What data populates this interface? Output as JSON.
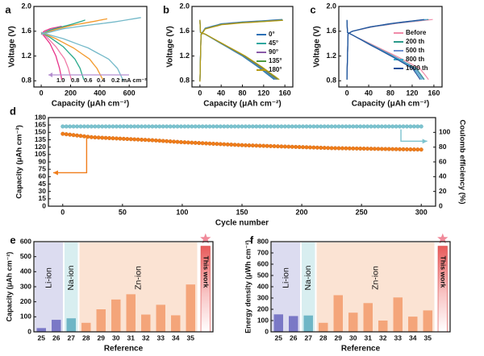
{
  "panel_labels": [
    "a",
    "b",
    "c",
    "d",
    "e",
    "f"
  ],
  "chart_data": [
    {
      "panel": "a",
      "type": "line",
      "xlabel": "Capacity (μAh cm⁻²)",
      "ylabel": "Voltage (V)",
      "xlim": [
        -50,
        720
      ],
      "ylim": [
        0.7,
        2.0
      ],
      "xticks": [
        0,
        200,
        400,
        600
      ],
      "yticks": [
        0.8,
        1.2,
        1.6,
        2.0
      ],
      "rate_labels": [
        "1.0",
        "0.8",
        "0.6",
        "0.4",
        "0.2 mA cm⁻²"
      ],
      "series": [
        {
          "label": "1.0",
          "color": "#e8338a",
          "charge": [
            [
              0,
              1.55
            ],
            [
              20,
              1.6
            ],
            [
              60,
              1.64
            ],
            [
              100,
              1.66
            ],
            [
              140,
              1.68
            ]
          ],
          "discharge": [
            [
              0,
              1.58
            ],
            [
              20,
              1.52
            ],
            [
              60,
              1.4
            ],
            [
              100,
              1.2
            ],
            [
              125,
              1.0
            ],
            [
              140,
              0.82
            ]
          ]
        },
        {
          "label": "0.8",
          "color": "#f07aa8",
          "charge": [
            [
              0,
              1.55
            ],
            [
              40,
              1.6
            ],
            [
              100,
              1.64
            ],
            [
              160,
              1.67
            ],
            [
              200,
              1.7
            ]
          ],
          "discharge": [
            [
              0,
              1.58
            ],
            [
              40,
              1.5
            ],
            [
              100,
              1.35
            ],
            [
              160,
              1.15
            ],
            [
              185,
              1.0
            ],
            [
              205,
              0.82
            ]
          ]
        },
        {
          "label": "0.6",
          "color": "#2aa98c",
          "charge": [
            [
              0,
              1.55
            ],
            [
              60,
              1.62
            ],
            [
              140,
              1.67
            ],
            [
              220,
              1.72
            ],
            [
              300,
              1.78
            ]
          ],
          "discharge": [
            [
              0,
              1.58
            ],
            [
              60,
              1.5
            ],
            [
              150,
              1.35
            ],
            [
              230,
              1.15
            ],
            [
              265,
              1.0
            ],
            [
              290,
              0.82
            ]
          ]
        },
        {
          "label": "0.4",
          "color": "#f39a2c",
          "charge": [
            [
              0,
              1.55
            ],
            [
              100,
              1.63
            ],
            [
              220,
              1.7
            ],
            [
              340,
              1.75
            ],
            [
              450,
              1.8
            ]
          ],
          "discharge": [
            [
              0,
              1.58
            ],
            [
              100,
              1.48
            ],
            [
              220,
              1.33
            ],
            [
              330,
              1.15
            ],
            [
              380,
              1.0
            ],
            [
              420,
              0.82
            ]
          ]
        },
        {
          "label": "0.2 mA cm⁻²",
          "color": "#74b9c9",
          "charge": [
            [
              0,
              1.55
            ],
            [
              150,
              1.64
            ],
            [
              330,
              1.7
            ],
            [
              500,
              1.75
            ],
            [
              680,
              1.82
            ]
          ],
          "discharge": [
            [
              0,
              1.58
            ],
            [
              150,
              1.48
            ],
            [
              320,
              1.33
            ],
            [
              460,
              1.15
            ],
            [
              520,
              1.0
            ],
            [
              560,
              0.8
            ]
          ]
        }
      ]
    },
    {
      "panel": "b",
      "type": "line",
      "xlabel": "Capacity (μAh cm⁻²)",
      "ylabel": "Voltage (V)",
      "xlim": [
        -15,
        175
      ],
      "ylim": [
        0.7,
        2.0
      ],
      "xticks": [
        0,
        40,
        80,
        120,
        160
      ],
      "yticks": [
        0.8,
        1.2,
        1.6,
        2.0
      ],
      "series": [
        {
          "name": "0°",
          "color": "#2b6fb6"
        },
        {
          "name": "45°",
          "color": "#2ea6a0"
        },
        {
          "name": "90°",
          "color": "#8a5aa8"
        },
        {
          "name": "135°",
          "color": "#4f9a3f"
        },
        {
          "name": "180°",
          "color": "#b59a14"
        }
      ],
      "charge": [
        [
          0,
          0.8
        ],
        [
          2,
          1.55
        ],
        [
          10,
          1.65
        ],
        [
          40,
          1.72
        ],
        [
          80,
          1.75
        ],
        [
          120,
          1.77
        ],
        [
          155,
          1.79
        ]
      ],
      "discharge": [
        [
          0,
          1.78
        ],
        [
          1,
          1.58
        ],
        [
          10,
          1.55
        ],
        [
          40,
          1.4
        ],
        [
          80,
          1.2
        ],
        [
          110,
          1.02
        ],
        [
          140,
          0.82
        ]
      ]
    },
    {
      "panel": "c",
      "type": "line",
      "xlabel": "Capacity (μAh cm⁻²)",
      "ylabel": "Voltage (V)",
      "xlim": [
        -15,
        175
      ],
      "ylim": [
        0.7,
        2.0
      ],
      "xticks": [
        0,
        40,
        80,
        120,
        160
      ],
      "yticks": [
        0.8,
        1.2,
        1.6,
        2.0
      ],
      "series": [
        {
          "name": "Before",
          "color": "#f08aa8",
          "end": 158
        },
        {
          "name": "200 th",
          "color": "#2a9a8a",
          "end": 150
        },
        {
          "name": "500 th",
          "color": "#6f8fd0",
          "end": 148
        },
        {
          "name": "800 th",
          "color": "#3aa9c9",
          "end": 145
        },
        {
          "name": "1000 th",
          "color": "#234f9a",
          "end": 142
        }
      ]
    },
    {
      "panel": "d",
      "type": "scatter",
      "xlabel": "Cycle number",
      "ylabel": "Capacity (μAh cm⁻²)",
      "ylabel_right": "Coulomb efficiency (%)",
      "xlim": [
        -12,
        312
      ],
      "ylim": [
        0,
        180
      ],
      "ylim_right": [
        0,
        120
      ],
      "xticks": [
        0,
        50,
        100,
        150,
        200,
        250,
        300
      ],
      "yticks": [
        0,
        15,
        30,
        45,
        60,
        75,
        90,
        105,
        120,
        135,
        150,
        165,
        180
      ],
      "yticks_right": [
        0,
        20,
        40,
        60,
        80,
        100
      ],
      "series": [
        {
          "name": "Capacity",
          "color": "#f07d1a",
          "axis": "left",
          "x": [
            0,
            25,
            50,
            75,
            100,
            125,
            150,
            175,
            200,
            225,
            250,
            275,
            300
          ],
          "y": [
            147,
            140,
            137,
            134,
            130,
            127,
            124,
            122,
            120,
            118,
            117,
            116,
            115
          ]
        },
        {
          "name": "Coulomb efficiency",
          "color": "#7cc3cf",
          "axis": "right",
          "x": [
            0,
            50,
            100,
            150,
            200,
            250,
            300
          ],
          "y": [
            108,
            108,
            108,
            108,
            108,
            108,
            108
          ]
        }
      ]
    },
    {
      "panel": "e",
      "type": "bar",
      "xlabel": "Reference",
      "ylabel": "Capacity (μAh cm⁻²)",
      "ylim": [
        0,
        600
      ],
      "yticks": [
        0,
        100,
        200,
        300,
        400,
        500,
        600
      ],
      "categories": [
        "25",
        "26",
        "27",
        "28",
        "29",
        "30",
        "31",
        "32",
        "33",
        "34",
        "35",
        ""
      ],
      "values": [
        25,
        80,
        90,
        60,
        150,
        215,
        250,
        115,
        180,
        110,
        315,
        570
      ],
      "groups": [
        {
          "label": "Li-ion",
          "start": 0,
          "end": 1,
          "color": "#dcdcf0"
        },
        {
          "label": "Na-ion",
          "start": 2,
          "end": 2,
          "color": "#d8eef0"
        },
        {
          "label": "Zn-ion",
          "start": 3,
          "end": 10,
          "color": "#fbe3d3"
        }
      ],
      "highlight_label": "This work"
    },
    {
      "panel": "f",
      "type": "bar",
      "xlabel": "Reference",
      "ylabel": "Energy density (μWh cm⁻²)",
      "ylim": [
        0,
        800
      ],
      "yticks": [
        0,
        100,
        200,
        300,
        400,
        500,
        600,
        700,
        800
      ],
      "categories": [
        "25",
        "26",
        "27",
        "28",
        "29",
        "30",
        "31",
        "32",
        "33",
        "34",
        "35",
        ""
      ],
      "values": [
        155,
        140,
        145,
        80,
        325,
        170,
        255,
        100,
        305,
        135,
        190,
        760
      ],
      "groups": [
        {
          "label": "Li-ion",
          "start": 0,
          "end": 1,
          "color": "#dcdcf0"
        },
        {
          "label": "Na-ion",
          "start": 2,
          "end": 2,
          "color": "#d8eef0"
        },
        {
          "label": "Zn-ion",
          "start": 3,
          "end": 10,
          "color": "#fbe3d3"
        }
      ],
      "highlight_label": "This work"
    }
  ]
}
